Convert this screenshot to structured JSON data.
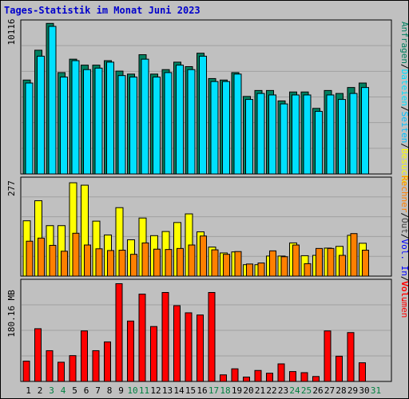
{
  "title": "Tages-Statistik im Monat Juni 2023",
  "colors": {
    "background": "#c0c0c0",
    "plot_background": "#c0c0c0",
    "grid": "#a0a0a0",
    "anfragen": "#008060",
    "dateien": "#00e0ff",
    "seiten": "#00c0ff",
    "besuche": "#ffff00",
    "rechner": "#ff8000",
    "volumen": "#ff0000",
    "xtick_weekday": "#000000",
    "xtick_weekend": "#008040"
  },
  "legends": {
    "top": [
      "Anfragen",
      "/",
      "Dateien",
      "/",
      "Seiten",
      "/",
      "Besuche"
    ],
    "middle": [
      "Rechner",
      "/",
      "Out",
      "/",
      "Vol.",
      "In",
      "/",
      "Vol."
    ],
    "bottom": [
      "Volumen"
    ]
  },
  "chart_data": [
    {
      "type": "bar",
      "name": "hits-files-pages",
      "ymax_label": "10116",
      "ylim": [
        0,
        10116
      ],
      "grid": true,
      "categories": [
        "1",
        "2",
        "3",
        "4",
        "5",
        "6",
        "7",
        "8",
        "9",
        "10",
        "11",
        "12",
        "13",
        "14",
        "15",
        "16",
        "17",
        "18",
        "19",
        "20",
        "21",
        "22",
        "23",
        "24",
        "25",
        "26",
        "27",
        "28",
        "29",
        "30",
        "31"
      ],
      "series": [
        {
          "name": "Anfragen",
          "values": [
            6300,
            8300,
            10100,
            6800,
            7700,
            7300,
            7300,
            7600,
            6900,
            6700,
            8000,
            6700,
            7000,
            7500,
            7200,
            8100,
            6400,
            6300,
            6800,
            5200,
            5600,
            5600,
            4900,
            5500,
            5500,
            4400,
            5600,
            5400,
            5800,
            6100,
            null
          ]
        },
        {
          "name": "Dateien",
          "values": [
            6100,
            7900,
            9900,
            6500,
            7600,
            7000,
            7100,
            7500,
            6600,
            6500,
            7700,
            6500,
            6800,
            7300,
            7000,
            7900,
            6200,
            6200,
            6700,
            5000,
            5400,
            5300,
            4700,
            5300,
            5300,
            4200,
            5300,
            5000,
            5400,
            5800,
            null
          ]
        }
      ]
    },
    {
      "type": "bar",
      "name": "visits-sites",
      "ymax_label": "277",
      "ylim": [
        0,
        277
      ],
      "grid": true,
      "categories": [
        "1",
        "2",
        "3",
        "4",
        "5",
        "6",
        "7",
        "8",
        "9",
        "10",
        "11",
        "12",
        "13",
        "14",
        "15",
        "16",
        "17",
        "18",
        "19",
        "20",
        "21",
        "22",
        "23",
        "24",
        "25",
        "26",
        "27",
        "28",
        "29",
        "30",
        "31"
      ],
      "series": [
        {
          "name": "Besuche",
          "values": [
            160,
            218,
            146,
            146,
            270,
            263,
            159,
            119,
            198,
            105,
            168,
            117,
            129,
            155,
            180,
            128,
            84,
            67,
            70,
            33,
            33,
            58,
            58,
            96,
            59,
            60,
            81,
            86,
            118,
            95,
            null
          ]
        },
        {
          "name": "Rechner",
          "values": [
            101,
            110,
            89,
            72,
            124,
            90,
            79,
            74,
            75,
            63,
            96,
            78,
            77,
            80,
            90,
            116,
            76,
            63,
            71,
            35,
            38,
            73,
            56,
            90,
            36,
            80,
            80,
            60,
            123,
            75,
            null
          ]
        }
      ]
    },
    {
      "type": "bar",
      "name": "volume",
      "ymax_label": "180.16 MB",
      "ylim": [
        0,
        180.16
      ],
      "grid": true,
      "categories": [
        "1",
        "2",
        "3",
        "4",
        "5",
        "6",
        "7",
        "8",
        "9",
        "10",
        "11",
        "12",
        "13",
        "14",
        "15",
        "16",
        "17",
        "18",
        "19",
        "20",
        "21",
        "22",
        "23",
        "24",
        "25",
        "26",
        "27",
        "28",
        "29",
        "30",
        "31"
      ],
      "series": [
        {
          "name": "Volumen",
          "values": [
            37,
            96,
            56,
            35,
            47,
            92,
            56,
            72,
            178,
            110,
            159,
            100,
            162,
            138,
            125,
            121,
            162,
            12,
            23,
            8,
            20,
            15,
            32,
            18,
            16,
            9,
            92,
            46,
            89,
            34,
            null
          ]
        }
      ]
    }
  ]
}
